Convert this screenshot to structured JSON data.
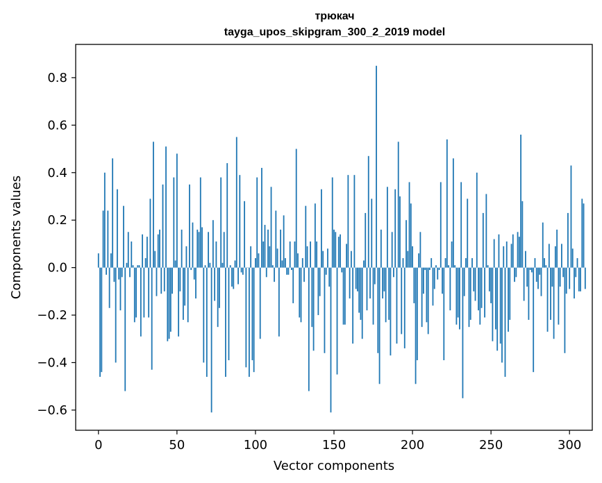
{
  "chart_data": {
    "type": "bar",
    "title": "трюкач",
    "subtitle": "tayga_upos_skipgram_300_2_2019 model",
    "xlabel": "Vector components",
    "ylabel": "Components values",
    "xlim": [
      -14.5,
      314.5
    ],
    "ylim": [
      -0.685,
      0.94
    ],
    "xticks": [
      0,
      50,
      100,
      150,
      200,
      250,
      300
    ],
    "xtick_labels": [
      "0",
      "50",
      "100",
      "150",
      "200",
      "250",
      "300"
    ],
    "yticks": [
      -0.6,
      -0.4,
      -0.2,
      0.0,
      0.2,
      0.4,
      0.6,
      0.8
    ],
    "ytick_labels": [
      "−0.6",
      "−0.4",
      "−0.2",
      "0.0",
      "0.2",
      "0.4",
      "0.6",
      "0.8"
    ],
    "grid": false,
    "bar_color": "#1f77b4",
    "series": [
      {
        "values": [
          0.06,
          -0.46,
          -0.44,
          0.24,
          0.4,
          -0.03,
          0.24,
          -0.17,
          0.06,
          0.46,
          -0.06,
          -0.4,
          0.33,
          -0.05,
          -0.18,
          -0.04,
          0.26,
          -0.52,
          0.02,
          0.15,
          -0.04,
          0.11,
          0.01,
          -0.23,
          -0.21,
          0.01,
          0.01,
          -0.29,
          0.14,
          -0.21,
          0.04,
          0.13,
          -0.21,
          0.29,
          -0.43,
          0.53,
          0.07,
          -0.12,
          0.14,
          0.16,
          -0.11,
          0.35,
          -0.1,
          0.51,
          -0.31,
          -0.3,
          -0.27,
          -0.11,
          0.38,
          0.03,
          0.48,
          -0.29,
          -0.1,
          0.16,
          -0.22,
          -0.16,
          0.09,
          -0.23,
          0.35,
          -0.01,
          0.19,
          -0.05,
          -0.13,
          0.16,
          0.15,
          0.38,
          0.17,
          -0.4,
          0.01,
          -0.46,
          0.15,
          0.02,
          -0.61,
          0.2,
          -0.14,
          0.11,
          -0.25,
          -0.17,
          0.38,
          0.02,
          0.15,
          -0.46,
          0.44,
          -0.39,
          0.01,
          -0.08,
          -0.09,
          0.03,
          0.55,
          -0.07,
          0.39,
          -0.02,
          -0.03,
          0.28,
          -0.42,
          0.0,
          -0.46,
          0.09,
          -0.39,
          -0.44,
          0.04,
          0.38,
          0.06,
          -0.3,
          0.42,
          0.11,
          0.18,
          -0.04,
          0.16,
          0.09,
          0.34,
          0.01,
          -0.06,
          0.24,
          0.08,
          -0.29,
          0.16,
          0.03,
          0.22,
          0.04,
          -0.03,
          -0.03,
          0.11,
          -0.01,
          -0.15,
          0.11,
          0.5,
          0.06,
          -0.21,
          -0.23,
          0.04,
          -0.06,
          0.26,
          0.09,
          -0.52,
          0.11,
          -0.25,
          -0.35,
          0.27,
          0.11,
          -0.2,
          -0.12,
          0.33,
          0.07,
          -0.36,
          -0.03,
          0.08,
          -0.08,
          -0.61,
          0.38,
          0.16,
          0.15,
          -0.45,
          0.13,
          0.14,
          -0.02,
          -0.24,
          -0.24,
          0.1,
          0.39,
          -0.13,
          0.07,
          -0.32,
          0.39,
          -0.09,
          -0.1,
          -0.19,
          -0.22,
          -0.3,
          0.03,
          0.23,
          -0.18,
          0.47,
          -0.13,
          0.29,
          -0.24,
          -0.07,
          0.85,
          -0.36,
          -0.49,
          0.16,
          -0.13,
          -0.1,
          -0.23,
          0.34,
          -0.22,
          -0.37,
          0.15,
          -0.04,
          0.33,
          -0.32,
          0.53,
          0.3,
          -0.28,
          0.04,
          -0.34,
          0.2,
          0.07,
          0.36,
          0.27,
          0.09,
          -0.15,
          -0.49,
          -0.39,
          0.06,
          0.15,
          -0.25,
          -0.11,
          -0.01,
          -0.23,
          -0.28,
          -0.01,
          0.04,
          -0.16,
          -0.09,
          0.01,
          -0.05,
          -0.01,
          0.36,
          -0.11,
          -0.39,
          0.04,
          0.54,
          0.01,
          -0.18,
          0.11,
          0.46,
          0.01,
          -0.24,
          -0.21,
          -0.26,
          0.36,
          -0.55,
          -0.12,
          0.04,
          0.29,
          -0.25,
          -0.22,
          0.04,
          -0.1,
          -0.14,
          0.4,
          -0.18,
          -0.24,
          -0.17,
          0.23,
          -0.21,
          0.31,
          0.01,
          -0.1,
          -0.15,
          -0.31,
          0.12,
          -0.26,
          -0.35,
          0.14,
          -0.32,
          -0.4,
          0.09,
          -0.46,
          0.11,
          -0.27,
          -0.22,
          0.1,
          0.14,
          -0.06,
          -0.04,
          0.15,
          0.13,
          0.56,
          0.28,
          -0.14,
          0.07,
          -0.08,
          -0.22,
          -0.01,
          -0.02,
          -0.44,
          0.04,
          -0.06,
          -0.09,
          -0.03,
          -0.12,
          0.19,
          0.04,
          0.01,
          -0.27,
          0.1,
          -0.22,
          -0.08,
          -0.3,
          0.09,
          0.16,
          -0.24,
          -0.08,
          0.1,
          -0.04,
          -0.36,
          -0.11,
          0.23,
          -0.09,
          0.43,
          0.08,
          -0.13,
          -0.04,
          0.04,
          -0.1,
          -0.1,
          0.29,
          0.27,
          -0.09
        ]
      }
    ]
  }
}
